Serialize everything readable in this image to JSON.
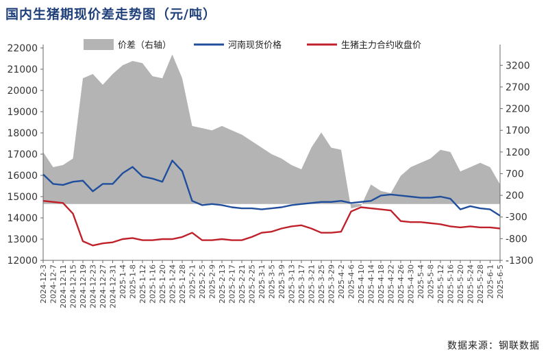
{
  "title": "国内生猪期现价差走势图（元/吨）",
  "source": "数据来源：钢联数据",
  "chart_data": {
    "type": "line",
    "title": "国内生猪期现价差走势图（元/吨）",
    "y_left": {
      "lim": [
        12000,
        22000
      ],
      "ticks": [
        12000,
        13000,
        14000,
        15000,
        16000,
        17000,
        18000,
        19000,
        20000,
        21000,
        22000
      ]
    },
    "y_right": {
      "lim": [
        -1300,
        3600
      ],
      "ticks": [
        -1300,
        -800,
        -300,
        200,
        700,
        1200,
        1700,
        2200,
        2700,
        3200
      ]
    },
    "grid": false,
    "legend_position": "top",
    "x": [
      "2024-12-3",
      "2024-12-7",
      "2024-12-11",
      "2024-12-15",
      "2024-12-19",
      "2024-12-23",
      "2024-12-27",
      "2024-12-31",
      "2025-1-4",
      "2025-1-8",
      "2025-1-12",
      "2025-1-16",
      "2025-1-20",
      "2025-1-24",
      "2025-1-28",
      "2025-2-1",
      "2025-2-5",
      "2025-2-9",
      "2025-2-13",
      "2025-2-17",
      "2025-2-21",
      "2025-2-25",
      "2025-3-1",
      "2025-3-5",
      "2025-3-9",
      "2025-3-13",
      "2025-3-17",
      "2025-3-21",
      "2025-3-25",
      "2025-3-29",
      "2025-4-2",
      "2025-4-6",
      "2025-4-10",
      "2025-4-14",
      "2025-4-18",
      "2025-4-22",
      "2025-4-26",
      "2025-4-30",
      "2025-5-4",
      "2025-5-8",
      "2025-5-12",
      "2025-5-16",
      "2025-5-20",
      "2025-5-24",
      "2025-5-28",
      "2025-6-1",
      "2025-6-5"
    ],
    "series": [
      {
        "name": "价差（右轴）",
        "type": "area",
        "axis": "right",
        "color": "#b4b4b4",
        "values": [
          1200,
          850,
          900,
          1050,
          2900,
          3000,
          2750,
          3000,
          3200,
          3300,
          3250,
          2950,
          2900,
          3450,
          2900,
          1800,
          1750,
          1700,
          1800,
          1700,
          1600,
          1450,
          1300,
          1150,
          1050,
          900,
          800,
          1300,
          1650,
          1300,
          1250,
          -100,
          -50,
          450,
          300,
          250,
          650,
          850,
          950,
          1050,
          1250,
          1200,
          750,
          850,
          950,
          850,
          450
        ]
      },
      {
        "name": "河南现货价格",
        "type": "line",
        "axis": "left",
        "color": "#1f4e9c",
        "values": [
          16050,
          15600,
          15550,
          15700,
          15750,
          15250,
          15600,
          15600,
          16100,
          16400,
          15950,
          15850,
          15700,
          16700,
          16200,
          14800,
          14600,
          14650,
          14600,
          14500,
          14450,
          14450,
          14400,
          14450,
          14500,
          14600,
          14650,
          14700,
          14750,
          14750,
          14800,
          14700,
          14750,
          14800,
          15050,
          15100,
          15050,
          15000,
          14950,
          14950,
          15000,
          14900,
          14400,
          14550,
          14450,
          14400,
          14100
        ]
      },
      {
        "name": "生猪主力合约收盘价",
        "type": "line",
        "axis": "left",
        "color": "#c0202a",
        "values": [
          14800,
          14750,
          14700,
          14200,
          12900,
          12700,
          12800,
          12850,
          13000,
          13050,
          12950,
          12950,
          13000,
          13000,
          13100,
          13300,
          12950,
          12950,
          13000,
          12950,
          12950,
          13100,
          13300,
          13350,
          13500,
          13600,
          13650,
          13500,
          13300,
          13300,
          13350,
          14300,
          14500,
          14450,
          14400,
          14350,
          13850,
          13800,
          13800,
          13750,
          13700,
          13600,
          13550,
          13600,
          13550,
          13550,
          13500
        ]
      }
    ]
  }
}
